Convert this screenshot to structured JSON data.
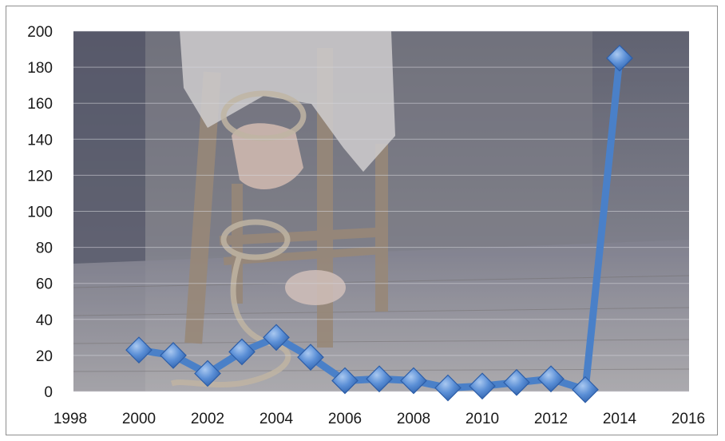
{
  "chart_data": {
    "type": "line",
    "title": "",
    "xlabel": "",
    "ylabel": "",
    "xlim": [
      1998,
      2016
    ],
    "ylim": [
      0,
      200
    ],
    "x_ticks": [
      "1998",
      "2000",
      "2002",
      "2004",
      "2006",
      "2008",
      "2010",
      "2012",
      "2014",
      "2016"
    ],
    "y_ticks": [
      "0",
      "20",
      "40",
      "60",
      "80",
      "100",
      "120",
      "140",
      "160",
      "180",
      "200"
    ],
    "grid": true,
    "legend": "none",
    "background": "photo of a person with hands tied by rope to a wooden chair",
    "series": [
      {
        "color": "#4a80c8",
        "marker": "diamond",
        "x": [
          2000,
          2001,
          2002,
          2003,
          2004,
          2005,
          2006,
          2007,
          2008,
          2009,
          2010,
          2011,
          2012,
          2013,
          2014
        ],
        "y": [
          23,
          20,
          10,
          22,
          30,
          19,
          6,
          7,
          6,
          2,
          3,
          5,
          7,
          1,
          185
        ]
      }
    ]
  }
}
